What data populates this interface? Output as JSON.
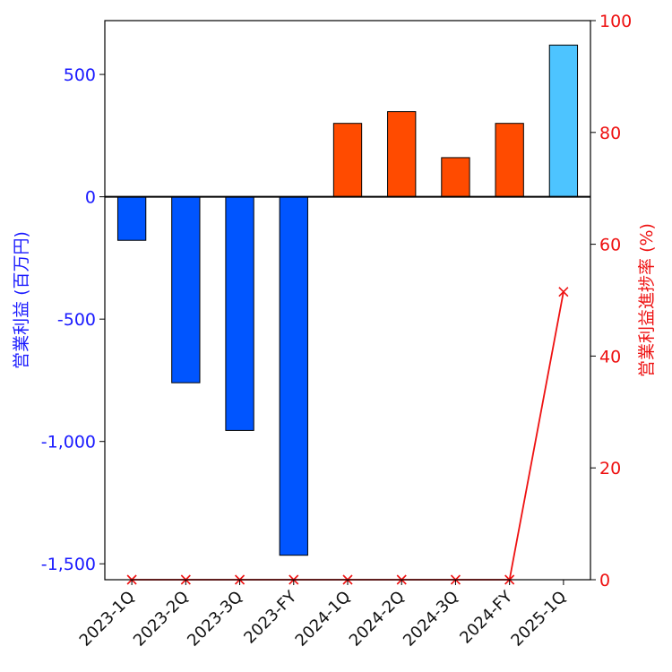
{
  "chart_data": {
    "type": "bar",
    "categories": [
      "2023-1Q",
      "2023-2Q",
      "2023-3Q",
      "2023-FY",
      "2024-1Q",
      "2024-2Q",
      "2024-3Q",
      "2024-FY",
      "2025-1Q"
    ],
    "series": [
      {
        "name": "営業利益",
        "axis": "left",
        "values": [
          -178,
          -760,
          -955,
          -1465,
          300,
          348,
          160,
          300,
          620
        ],
        "colors": [
          "#0055ff",
          "#0055ff",
          "#0055ff",
          "#0055ff",
          "#ff4b00",
          "#ff4b00",
          "#ff4b00",
          "#ff4b00",
          "#4dc4ff"
        ]
      },
      {
        "name": "営業利益進捗率",
        "axis": "right",
        "type": "line",
        "marker": "x",
        "color": "#ee1111",
        "values": [
          0,
          0,
          0,
          0,
          0,
          0,
          0,
          0,
          51.5
        ]
      }
    ],
    "ylabel_left": "営業利益 (百万円)",
    "ylabel_right": "営業利益進捗率 (%)",
    "ylim_left": [
      -1565,
      720
    ],
    "ylim_right": [
      0,
      100
    ],
    "yticks_left": [
      500,
      0,
      -500,
      -1000,
      -1500
    ],
    "yticks_left_labels": [
      "500",
      "0",
      "-500",
      "-1,000",
      "-1,500"
    ],
    "yticks_right": [
      100,
      80,
      60,
      40,
      20,
      0
    ],
    "yticks_right_labels": [
      "100",
      "80",
      "60",
      "40",
      "20",
      "0"
    ],
    "grid": false,
    "title": ""
  }
}
